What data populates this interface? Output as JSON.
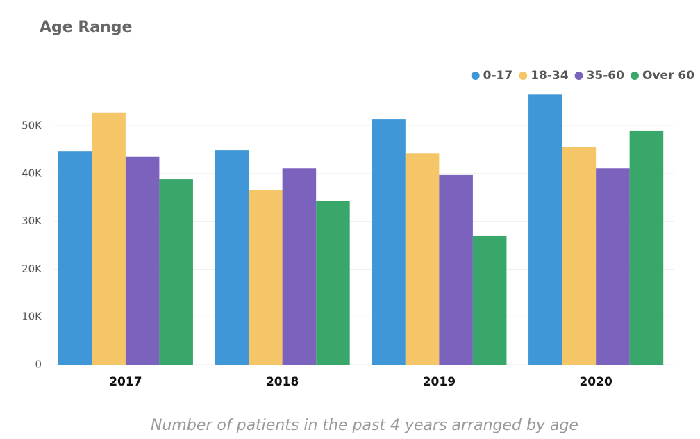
{
  "chart_data": {
    "type": "bar",
    "title": "Age Range",
    "subtitle": "Number of patients in the past 4 years arranged by age",
    "categories": [
      "2017",
      "2018",
      "2019",
      "2020"
    ],
    "series": [
      {
        "name": "0-17",
        "color": "#3f97d7",
        "values": [
          44600,
          44900,
          51300,
          56500
        ]
      },
      {
        "name": "18-34",
        "color": "#f5c667",
        "values": [
          52800,
          36500,
          44300,
          45500
        ]
      },
      {
        "name": "35-60",
        "color": "#7b62bc",
        "values": [
          43500,
          41100,
          39700,
          41100
        ]
      },
      {
        "name": "Over 60",
        "color": "#39a76a",
        "values": [
          38800,
          34200,
          26900,
          49000
        ]
      }
    ],
    "ylim": [
      0,
      58000
    ],
    "yticks": [
      0,
      {
        "value": 10000,
        "label": "10K"
      },
      {
        "value": 20000,
        "label": "20K"
      },
      {
        "value": 30000,
        "label": "30K"
      },
      {
        "value": 40000,
        "label": "40K"
      },
      {
        "value": 50000,
        "label": "50K"
      }
    ],
    "grid": true,
    "legend": "top-right"
  }
}
